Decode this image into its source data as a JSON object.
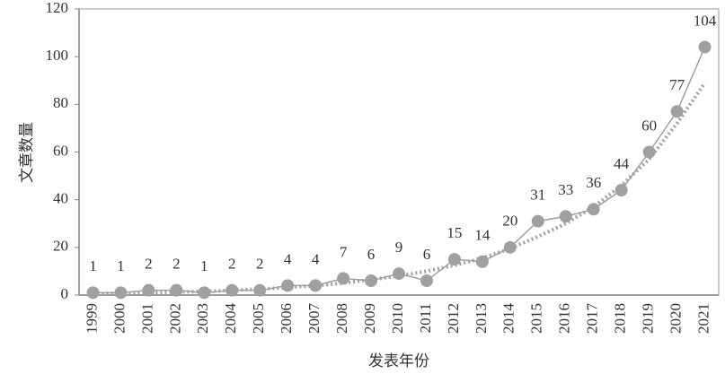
{
  "chart_data": {
    "type": "line",
    "x_label": "发表年份",
    "y_label": "文章数量",
    "categories": [
      "1999",
      "2000",
      "2001",
      "2002",
      "2003",
      "2004",
      "2005",
      "2006",
      "2007",
      "2008",
      "2009",
      "2010",
      "2011",
      "2012",
      "2013",
      "2014",
      "2015",
      "2016",
      "2017",
      "2018",
      "2019",
      "2020",
      "2021"
    ],
    "series": [
      {
        "name": "文章数量",
        "color": "#a0a0a0",
        "values": [
          1,
          1,
          2,
          2,
          1,
          2,
          2,
          4,
          4,
          7,
          6,
          9,
          6,
          15,
          14,
          20,
          31,
          33,
          36,
          44,
          60,
          77,
          104
        ]
      },
      {
        "color": "#a0a0a0",
        "style": "dotted",
        "values": [
          0.5,
          0.8,
          1,
          1.3,
          1.5,
          2,
          2.5,
          3.2,
          4,
          5,
          6.5,
          8,
          10,
          12.5,
          15.5,
          19.5,
          24.5,
          30,
          37,
          46,
          57,
          72,
          89
        ]
      }
    ],
    "ylim": [
      0,
      120
    ],
    "yticks": [
      0,
      20,
      40,
      60,
      80,
      100,
      120
    ]
  }
}
